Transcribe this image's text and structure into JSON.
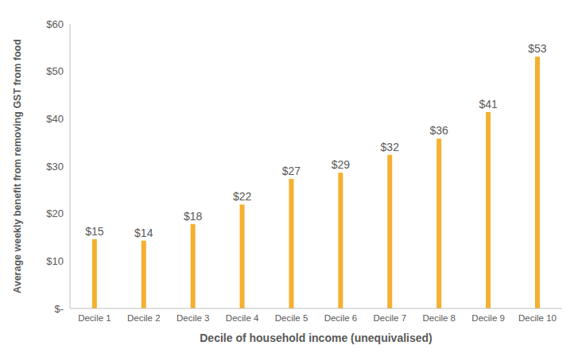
{
  "chart_data": {
    "type": "bar",
    "categories": [
      "Decile 1",
      "Decile 2",
      "Decile 3",
      "Decile 4",
      "Decile 5",
      "Decile 6",
      "Decile 7",
      "Decile 8",
      "Decile 9",
      "Decile 10"
    ],
    "values": [
      14.6,
      14.3,
      17.8,
      21.9,
      27.3,
      28.6,
      32.4,
      35.8,
      41.4,
      53.1
    ],
    "value_labels": [
      "$15",
      "$14",
      "$18",
      "$22",
      "$27",
      "$29",
      "$32",
      "$36",
      "$41",
      "$53"
    ],
    "data_labels": true,
    "color": "#f4b02f",
    "x_label": "Decile of household income (unequivalised)",
    "y_label": "Average weekly benefit from removing GST from food",
    "ylim": [
      0,
      60
    ],
    "yticks": [
      {
        "value": 0,
        "label": "$-"
      },
      {
        "value": 10,
        "label": "$10"
      },
      {
        "value": 20,
        "label": "$20"
      },
      {
        "value": 30,
        "label": "$30"
      },
      {
        "value": 40,
        "label": "$40"
      },
      {
        "value": 50,
        "label": "$50"
      },
      {
        "value": 60,
        "label": "$60"
      }
    ],
    "grid": false
  }
}
